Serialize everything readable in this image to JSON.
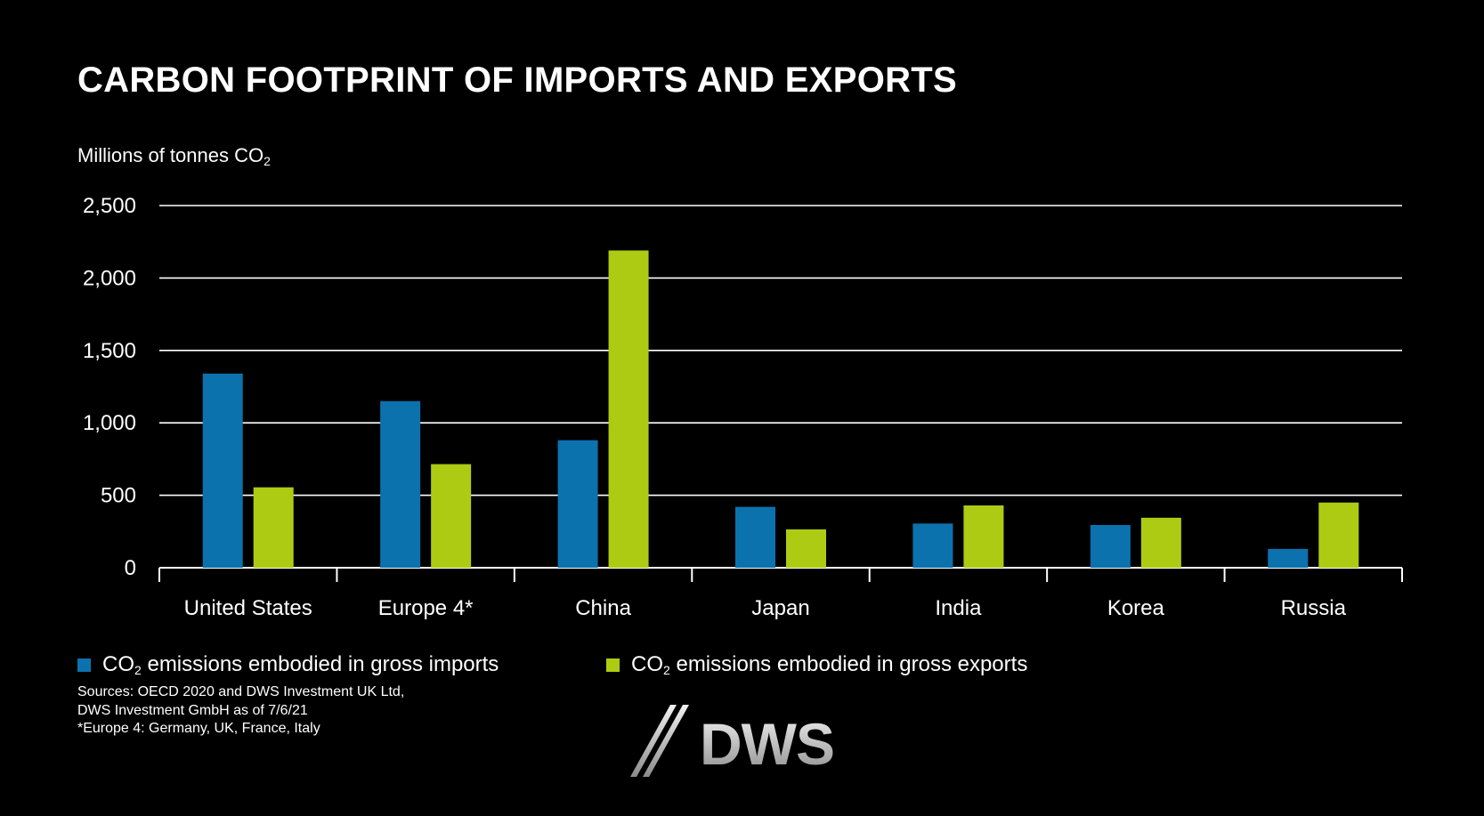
{
  "title": "CARBON FOOTPRINT OF IMPORTS AND EXPORTS",
  "ylabel": {
    "text": "Millions of tonnes CO",
    "sub": "2"
  },
  "colors": {
    "imports": "#0b72ae",
    "exports": "#aecb14",
    "background": "#000000",
    "grid": "#ffffff"
  },
  "chart_data": {
    "type": "bar",
    "title": "CARBON FOOTPRINT OF IMPORTS AND EXPORTS",
    "xlabel": "",
    "ylabel": "Millions of tonnes CO2",
    "ylim": [
      0,
      2500
    ],
    "yticks": [
      0,
      500,
      1000,
      1500,
      2000,
      2500
    ],
    "ytick_labels": [
      "0",
      "500",
      "1,000",
      "1,500",
      "2,000",
      "2,500"
    ],
    "categories": [
      "United States",
      "Europe 4*",
      "China",
      "Japan",
      "India",
      "Korea",
      "Russia"
    ],
    "series": [
      {
        "name": "CO2 emissions embodied in gross imports",
        "color": "#0b72ae",
        "values": [
          1340,
          1150,
          880,
          420,
          305,
          295,
          130
        ]
      },
      {
        "name": "CO2 emissions embodied in gross exports",
        "color": "#aecb14",
        "values": [
          555,
          715,
          2190,
          265,
          430,
          345,
          450
        ]
      }
    ],
    "grid": true,
    "legend_position": "bottom"
  },
  "legend": [
    {
      "pre": "CO",
      "sub": "2",
      "post": " emissions embodied in gross imports",
      "color": "#0b72ae"
    },
    {
      "pre": "CO",
      "sub": "2",
      "post": " emissions embodied in gross exports",
      "color": "#aecb14"
    }
  ],
  "sources": [
    "Sources: OECD 2020 and DWS Investment UK Ltd,",
    "DWS Investment GmbH as of 7/6/21",
    "*Europe 4: Germany, UK, France, Italy"
  ],
  "logo": {
    "text": "DWS"
  }
}
